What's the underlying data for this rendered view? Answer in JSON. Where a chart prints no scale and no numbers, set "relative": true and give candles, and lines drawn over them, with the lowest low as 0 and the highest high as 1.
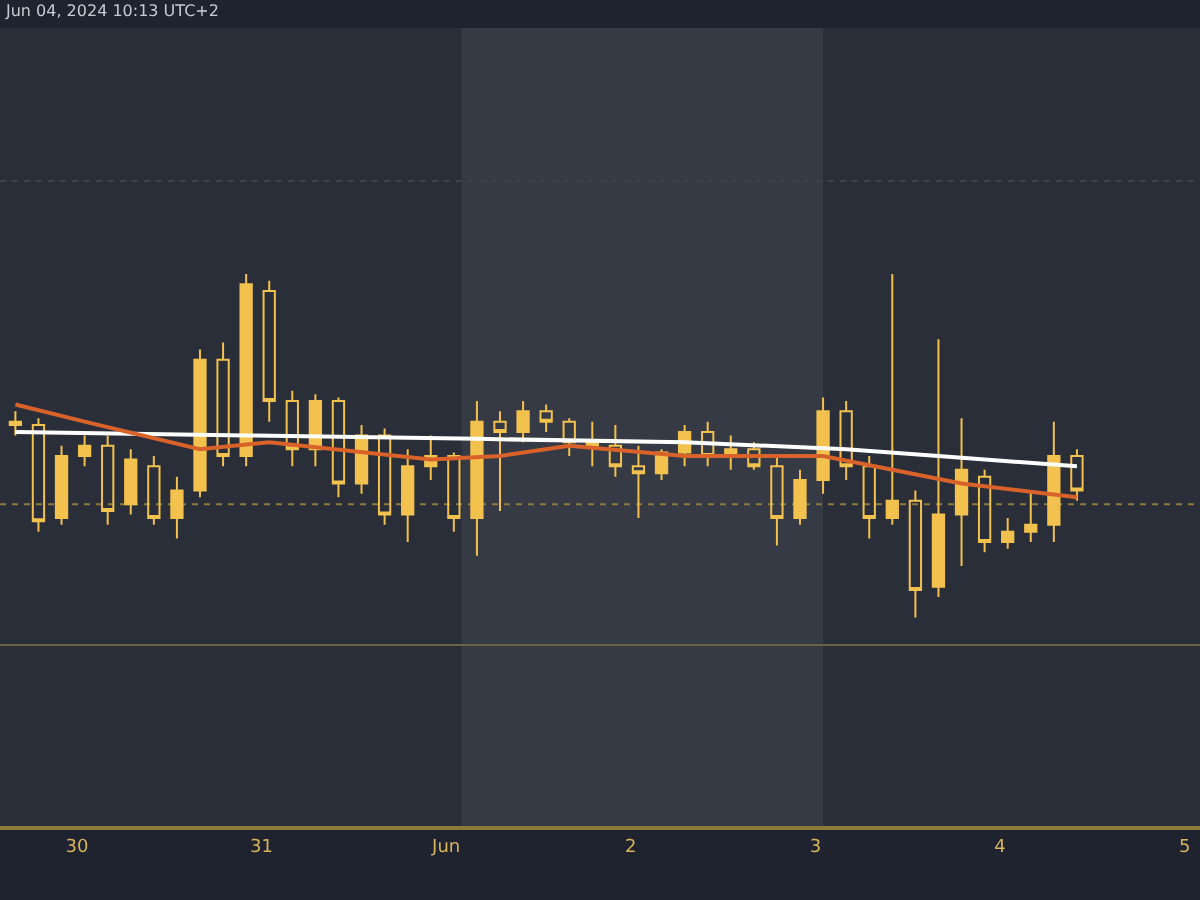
{
  "chart_data": {
    "type": "candlestick",
    "relative": true,
    "color": "#f2c14e",
    "annotations": [
      "Jun 04, 2024 10:13 UTC+2"
    ],
    "x": [
      "2024-05-29T16:00",
      "2024-05-29T19:00",
      "2024-05-29T22:00",
      "2024-05-30T01:00",
      "2024-05-30T04:00",
      "2024-05-30T07:00",
      "2024-05-30T10:00",
      "2024-05-30T13:00",
      "2024-05-30T16:00",
      "2024-05-30T19:00",
      "2024-05-30T22:00",
      "2024-05-31T01:00",
      "2024-05-31T04:00",
      "2024-05-31T07:00",
      "2024-05-31T10:00",
      "2024-05-31T13:00",
      "2024-05-31T16:00",
      "2024-05-31T19:00",
      "2024-05-31T22:00",
      "2024-06-01T01:00",
      "2024-06-01T04:00",
      "2024-06-01T07:00",
      "2024-06-01T10:00",
      "2024-06-01T13:00",
      "2024-06-01T16:00",
      "2024-06-01T19:00",
      "2024-06-01T22:00",
      "2024-06-02T01:00",
      "2024-06-02T04:00",
      "2024-06-02T07:00",
      "2024-06-02T10:00",
      "2024-06-02T13:00",
      "2024-06-02T16:00",
      "2024-06-02T19:00",
      "2024-06-02T22:00",
      "2024-06-03T01:00",
      "2024-06-03T04:00",
      "2024-06-03T07:00",
      "2024-06-03T10:00",
      "2024-06-03T13:00",
      "2024-06-03T16:00",
      "2024-06-03T19:00",
      "2024-06-03T22:00",
      "2024-06-04T01:00",
      "2024-06-04T04:00",
      "2024-06-04T07:00",
      "2024-06-04T10:00"
    ],
    "ohlc": [
      [
        0.57,
        0.6,
        0.53,
        0.56
      ],
      [
        0.56,
        0.58,
        0.25,
        0.28
      ],
      [
        0.29,
        0.5,
        0.27,
        0.47
      ],
      [
        0.47,
        0.53,
        0.44,
        0.5
      ],
      [
        0.5,
        0.53,
        0.27,
        0.31
      ],
      [
        0.33,
        0.49,
        0.3,
        0.46
      ],
      [
        0.44,
        0.47,
        0.27,
        0.29
      ],
      [
        0.29,
        0.41,
        0.23,
        0.37
      ],
      [
        0.37,
        0.78,
        0.35,
        0.75
      ],
      [
        0.75,
        0.8,
        0.44,
        0.47
      ],
      [
        0.47,
        1,
        0.44,
        0.97
      ],
      [
        0.95,
        0.98,
        0.57,
        0.63
      ],
      [
        0.63,
        0.66,
        0.44,
        0.49
      ],
      [
        0.49,
        0.65,
        0.44,
        0.63
      ],
      [
        0.63,
        0.64,
        0.35,
        0.39
      ],
      [
        0.39,
        0.56,
        0.36,
        0.53
      ],
      [
        0.53,
        0.55,
        0.27,
        0.3
      ],
      [
        0.3,
        0.49,
        0.22,
        0.44
      ],
      [
        0.44,
        0.53,
        0.4,
        0.47
      ],
      [
        0.47,
        0.48,
        0.25,
        0.29
      ],
      [
        0.29,
        0.63,
        0.18,
        0.57
      ],
      [
        0.57,
        0.6,
        0.31,
        0.54
      ],
      [
        0.54,
        0.63,
        0.51,
        0.6
      ],
      [
        0.6,
        0.62,
        0.54,
        0.57
      ],
      [
        0.57,
        0.58,
        0.47,
        0.51
      ],
      [
        0.51,
        0.57,
        0.44,
        0.5
      ],
      [
        0.5,
        0.56,
        0.41,
        0.44
      ],
      [
        0.44,
        0.5,
        0.29,
        0.42
      ],
      [
        0.42,
        0.49,
        0.4,
        0.48
      ],
      [
        0.48,
        0.56,
        0.44,
        0.54
      ],
      [
        0.54,
        0.57,
        0.44,
        0.47
      ],
      [
        0.47,
        0.53,
        0.43,
        0.49
      ],
      [
        0.49,
        0.51,
        0.43,
        0.44
      ],
      [
        0.44,
        0.47,
        0.21,
        0.29
      ],
      [
        0.29,
        0.43,
        0.27,
        0.4
      ],
      [
        0.4,
        0.64,
        0.36,
        0.6
      ],
      [
        0.6,
        0.63,
        0.4,
        0.44
      ],
      [
        0.44,
        0.47,
        0.23,
        0.29
      ],
      [
        0.29,
        1,
        0.27,
        0.34
      ],
      [
        0.34,
        0.37,
        0,
        0.08
      ],
      [
        0.09,
        0.81,
        0.06,
        0.3
      ],
      [
        0.3,
        0.58,
        0.15,
        0.43
      ],
      [
        0.41,
        0.43,
        0.19,
        0.22
      ],
      [
        0.22,
        0.29,
        0.2,
        0.25
      ],
      [
        0.25,
        0.37,
        0.22,
        0.27
      ],
      [
        0.27,
        0.57,
        0.22,
        0.47
      ],
      [
        0.47,
        0.49,
        0.34,
        0.37
      ]
    ],
    "series": [
      {
        "type": "line",
        "color": "#ffffff",
        "x": [
          "2024-05-29T16:00",
          "2024-05-30T22:00",
          "2024-06-01T04:00",
          "2024-06-02T07:00",
          "2024-06-03T04:00",
          "2024-06-03T16:00",
          "2024-06-04T10:00"
        ],
        "values": [
          0.54,
          0.53,
          0.52,
          0.51,
          0.49,
          0.47,
          0.44
        ]
      },
      {
        "type": "line",
        "color": "#d9622b",
        "x": [
          "2024-05-29T16:00",
          "2024-05-30T01:00",
          "2024-05-30T16:00",
          "2024-05-31T01:00",
          "2024-05-31T22:00",
          "2024-06-01T07:00",
          "2024-06-01T16:00",
          "2024-06-02T07:00",
          "2024-06-03T01:00",
          "2024-06-03T10:00",
          "2024-06-03T19:00",
          "2024-06-04T10:00"
        ],
        "values": [
          0.62,
          0.57,
          0.49,
          0.51,
          0.46,
          0.47,
          0.5,
          0.47,
          0.47,
          0.43,
          0.39,
          0.35
        ]
      }
    ],
    "xlim": [
      "2024-05-29T14:00",
      "2024-06-05T02:00"
    ],
    "xticks": [
      {
        "value": "2024-05-30",
        "label": "30"
      },
      {
        "value": "2024-05-31",
        "label": "31"
      },
      {
        "value": "2024-06-01",
        "label": "Jun"
      },
      {
        "value": "2024-06-02",
        "label": "2"
      },
      {
        "value": "2024-06-03",
        "label": "3"
      },
      {
        "value": "2024-06-04",
        "label": "4"
      },
      {
        "value": "2024-06-05",
        "label": "5"
      }
    ],
    "ref_lines": [
      {
        "axis": "y",
        "value": 0.33,
        "color": "#8c7a3c",
        "line_style": "dotted"
      },
      {
        "axis": "y",
        "value": -0.08,
        "color": "#6b6240",
        "line_style": "solid"
      },
      {
        "axis": "y",
        "value": 1.27,
        "color": "#3d4250",
        "line_style": "dotted"
      }
    ],
    "bands": [
      {
        "axis": "x",
        "from": "2024-06-01T02:00",
        "to": "2024-06-03T01:00",
        "color": "#363a45"
      }
    ]
  }
}
